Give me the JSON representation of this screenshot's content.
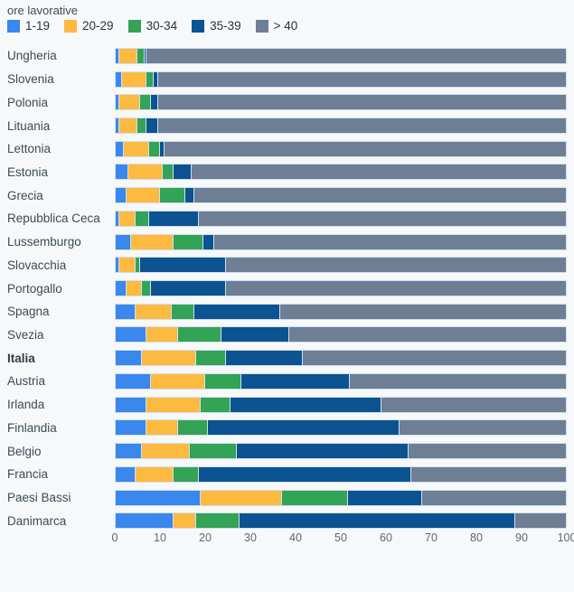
{
  "title": "ore lavorative",
  "colors": {
    "background": "#f7f8f9",
    "segment_border": "#cfe0f3",
    "label_text": "#3c4a57",
    "axis_text": "#5d6974"
  },
  "legend": {
    "title": "ore lavorative",
    "items": [
      {
        "label": "1-19",
        "color": "#3a87ee"
      },
      {
        "label": "20-29",
        "color": "#fdba40"
      },
      {
        "label": "30-34",
        "color": "#33a355"
      },
      {
        "label": "35-39",
        "color": "#0b5391"
      },
      {
        "label": "> 40",
        "color": "#6e7e94"
      }
    ]
  },
  "chart_data": {
    "type": "bar",
    "stacked": true,
    "orientation": "horizontal",
    "title": "ore lavorative",
    "xlabel": "",
    "ylabel": "",
    "xlim": [
      0,
      100
    ],
    "xticks": [
      0,
      10,
      20,
      30,
      40,
      50,
      60,
      70,
      80,
      90,
      100
    ],
    "grid": false,
    "legend_position": "top-left",
    "bold_category": "Italia",
    "categories": [
      "Ungheria",
      "Slovenia",
      "Polonia",
      "Lituania",
      "Lettonia",
      "Estonia",
      "Grecia",
      "Repubblica Ceca",
      "Lussemburgo",
      "Slovacchia",
      "Portogallo",
      "Spagna",
      "Svezia",
      "Italia",
      "Austria",
      "Irlanda",
      "Finlandia",
      "Belgio",
      "Francia",
      "Paesi Bassi",
      "Danimarca"
    ],
    "series": [
      {
        "name": "1-19",
        "color": "#3a87ee",
        "values": [
          1,
          1.5,
          1,
          1,
          2,
          3,
          2.5,
          1,
          3.5,
          1,
          2.5,
          4.5,
          7,
          6,
          8,
          7,
          7,
          6,
          4.5,
          19,
          13
        ]
      },
      {
        "name": "20-29",
        "color": "#fdba40",
        "values": [
          4,
          5.5,
          4.5,
          4,
          5.5,
          7.5,
          7.5,
          3.5,
          9.5,
          3.5,
          3.5,
          8,
          7,
          12,
          12,
          12,
          7,
          10.5,
          8.5,
          18,
          5
        ]
      },
      {
        "name": "30-34",
        "color": "#33a355",
        "values": [
          1.5,
          1.5,
          2.5,
          2,
          2.5,
          2.5,
          5.5,
          3,
          6.5,
          1,
          2,
          5,
          9.5,
          6.5,
          8,
          6.5,
          6.5,
          10.5,
          5.5,
          14.5,
          9.5
        ]
      },
      {
        "name": "35-39",
        "color": "#0b5391",
        "values": [
          0.5,
          1,
          1.5,
          2.5,
          1,
          4,
          2,
          11,
          2.5,
          19,
          16.5,
          19,
          15,
          17,
          24,
          33.5,
          42.5,
          38,
          47,
          16.5,
          61
        ]
      },
      {
        "name": "> 40",
        "color": "#6e7e94",
        "values": [
          93,
          90.5,
          90.5,
          90.5,
          89,
          83,
          82.5,
          81.5,
          78,
          75.5,
          75.5,
          63.5,
          61.5,
          58.5,
          48,
          41,
          37,
          35,
          34.5,
          32,
          11.5
        ]
      }
    ]
  }
}
